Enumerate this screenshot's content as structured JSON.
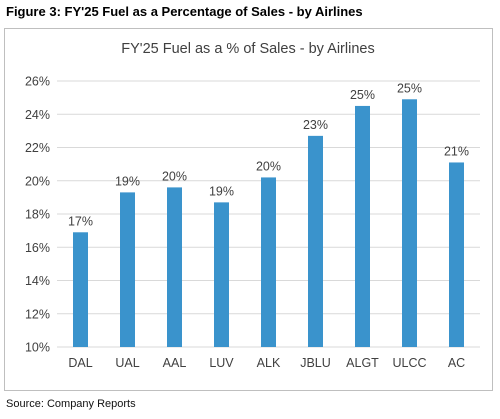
{
  "figure": {
    "title": "Figure 3: FY'25 Fuel as a Percentage of Sales - by Airlines",
    "source": "Source: Company Reports"
  },
  "colors": {
    "bar": "#3a93cc",
    "grid": "#d9d9d9"
  },
  "chart_data": {
    "type": "bar",
    "title": "FY'25 Fuel as a % of Sales - by Airlines",
    "xlabel": "",
    "ylabel": "",
    "categories": [
      "DAL",
      "UAL",
      "AAL",
      "LUV",
      "ALK",
      "JBLU",
      "ALGT",
      "ULCC",
      "AC"
    ],
    "values": [
      16.9,
      19.3,
      19.6,
      18.7,
      20.2,
      22.7,
      24.5,
      24.9,
      21.1
    ],
    "data_labels": [
      "17%",
      "19%",
      "20%",
      "19%",
      "20%",
      "23%",
      "25%",
      "25%",
      "21%"
    ],
    "ylim": [
      10,
      26
    ],
    "yticks": [
      10,
      12,
      14,
      16,
      18,
      20,
      22,
      24,
      26
    ],
    "ytick_labels": [
      "10%",
      "12%",
      "14%",
      "16%",
      "18%",
      "20%",
      "22%",
      "24%",
      "26%"
    ],
    "grid": true,
    "legend": "none"
  }
}
